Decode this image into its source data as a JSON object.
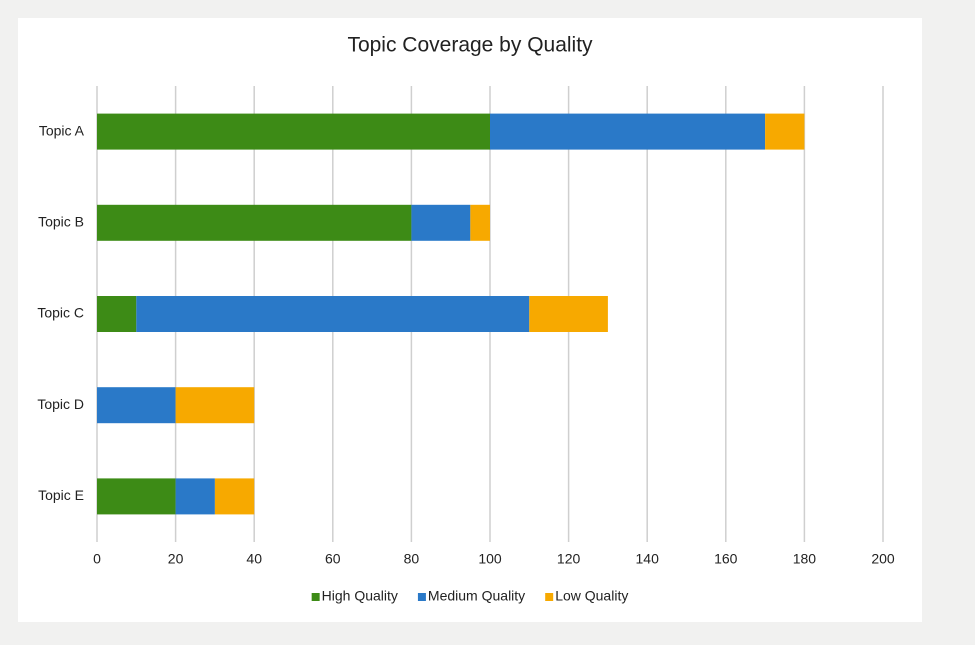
{
  "chart_data": {
    "type": "bar",
    "orientation": "horizontal",
    "stacked": true,
    "title": "Topic Coverage by Quality",
    "categories": [
      "Topic A",
      "Topic B",
      "Topic C",
      "Topic D",
      "Topic E"
    ],
    "series": [
      {
        "name": "High Quality",
        "color": "#3d8b16",
        "values": [
          100,
          80,
          10,
          0,
          20
        ]
      },
      {
        "name": "Medium Quality",
        "color": "#2a79c8",
        "values": [
          70,
          15,
          100,
          20,
          10
        ]
      },
      {
        "name": "Low Quality",
        "color": "#f7a900",
        "values": [
          10,
          5,
          20,
          20,
          10
        ]
      }
    ],
    "xlim": [
      0,
      200
    ],
    "xticks": [
      0,
      20,
      40,
      60,
      80,
      100,
      120,
      140,
      160,
      180,
      200
    ],
    "grid": true,
    "legend": "bottom"
  }
}
